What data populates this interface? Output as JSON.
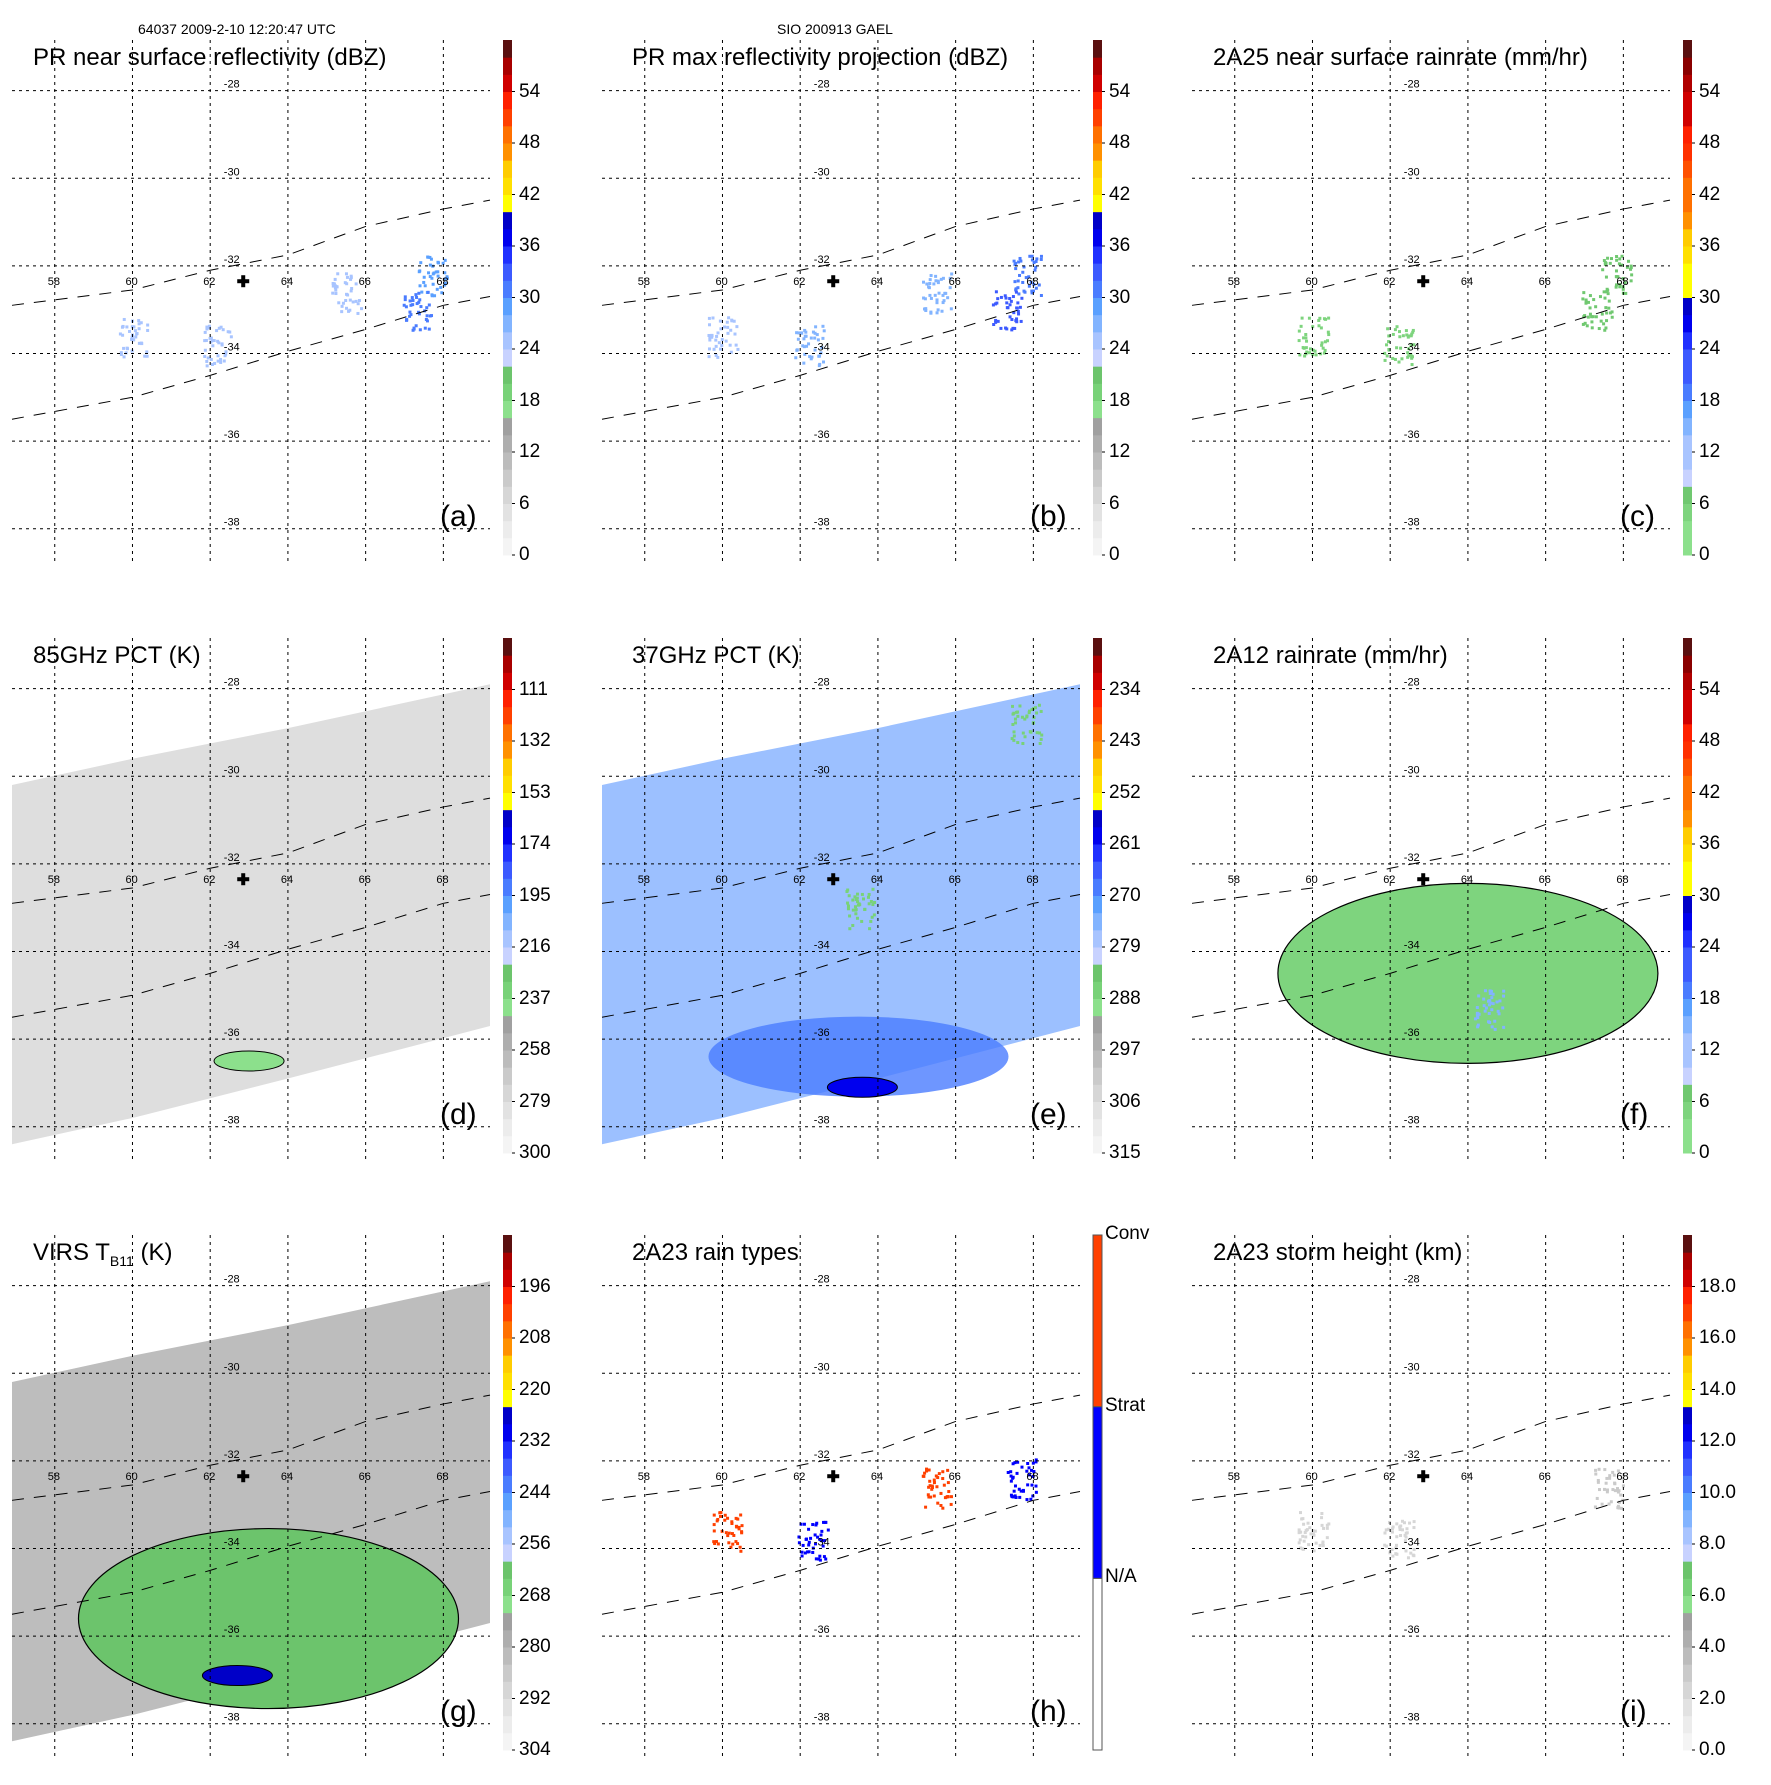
{
  "header": {
    "left_text": "64037 2009-2-10 12:20:47 UTC",
    "center_text": "SIO 200913 GAEL"
  },
  "grid": {
    "lon_ticks": [
      "58",
      "60",
      "62",
      "64",
      "66",
      "68"
    ],
    "lat_ticks": [
      "-28",
      "-30",
      "-32",
      "-34",
      "-36",
      "-38"
    ],
    "lon_values": [
      58,
      60,
      62,
      64,
      66,
      68
    ],
    "lat_values": [
      -28,
      -30,
      -32,
      -34,
      -36,
      -38
    ],
    "lon_range": [
      56.9,
      69.2
    ],
    "lat_range": [
      -27.3,
      -38.6
    ],
    "storm_center": {
      "lon": 62.85,
      "lat": -32.35,
      "marker": "cross"
    },
    "pr_swath_edges": [
      {
        "name": "north-edge",
        "points": [
          [
            56.9,
            -32.9
          ],
          [
            60,
            -32.55
          ],
          [
            62,
            -32.1
          ],
          [
            64,
            -31.75
          ],
          [
            66,
            -31.1
          ],
          [
            68,
            -30.7
          ],
          [
            69.2,
            -30.5
          ]
        ]
      },
      {
        "name": "south-edge",
        "points": [
          [
            56.9,
            -35.5
          ],
          [
            60,
            -35.0
          ],
          [
            62,
            -34.5
          ],
          [
            64,
            -33.95
          ],
          [
            66,
            -33.45
          ],
          [
            68,
            -32.9
          ],
          [
            69.2,
            -32.7
          ]
        ]
      }
    ]
  },
  "chart_data": [
    {
      "id": "a",
      "type": "heatmap",
      "panel_label": "(a)",
      "title": "PR near surface reflectivity (dBZ)",
      "colorbar": {
        "ticks": [
          "0",
          "6",
          "12",
          "18",
          "24",
          "30",
          "36",
          "42",
          "48",
          "54"
        ],
        "min": 0,
        "max": 60,
        "kind": "reflectivity"
      },
      "features": [
        {
          "kind": "scatter",
          "lon": 60.0,
          "lat": -33.6,
          "val": 24
        },
        {
          "kind": "scatter",
          "lon": 62.2,
          "lat": -33.8,
          "val": 24
        },
        {
          "kind": "scatter",
          "lon": 67.7,
          "lat": -32.2,
          "val": 28
        },
        {
          "kind": "scatter",
          "lon": 67.3,
          "lat": -33.0,
          "val": 30
        },
        {
          "kind": "scatter",
          "lon": 65.5,
          "lat": -32.6,
          "val": 25
        }
      ]
    },
    {
      "id": "b",
      "type": "heatmap",
      "panel_label": "(b)",
      "title": "PR max reflectivity projection (dBZ)",
      "colorbar": {
        "ticks": [
          "0",
          "6",
          "12",
          "18",
          "24",
          "30",
          "36",
          "42",
          "48",
          "54"
        ],
        "min": 0,
        "max": 60,
        "kind": "reflectivity"
      },
      "features": [
        {
          "kind": "scatter",
          "lon": 60.0,
          "lat": -33.6,
          "val": 24
        },
        {
          "kind": "scatter",
          "lon": 62.2,
          "lat": -33.8,
          "val": 26
        },
        {
          "kind": "scatter",
          "lon": 67.8,
          "lat": -32.2,
          "val": 30
        },
        {
          "kind": "scatter",
          "lon": 67.3,
          "lat": -33.0,
          "val": 32
        },
        {
          "kind": "scatter",
          "lon": 65.5,
          "lat": -32.6,
          "val": 26
        }
      ]
    },
    {
      "id": "c",
      "type": "heatmap",
      "panel_label": "(c)",
      "title": "2A25 near surface rainrate (mm/hr)",
      "colorbar": {
        "ticks": [
          "0",
          "6",
          "12",
          "18",
          "24",
          "30",
          "36",
          "42",
          "48",
          "54"
        ],
        "min": 0,
        "max": 60,
        "kind": "rainrate"
      },
      "features": [
        {
          "kind": "scatter",
          "lon": 60.0,
          "lat": -33.6,
          "val": 3
        },
        {
          "kind": "scatter",
          "lon": 62.2,
          "lat": -33.8,
          "val": 4
        },
        {
          "kind": "scatter",
          "lon": 67.8,
          "lat": -32.2,
          "val": 5
        },
        {
          "kind": "scatter",
          "lon": 67.3,
          "lat": -33.0,
          "val": 6
        }
      ]
    },
    {
      "id": "d",
      "type": "heatmap",
      "panel_label": "(d)",
      "title": "85GHz PCT (K)",
      "colorbar": {
        "ticks": [
          "300",
          "279",
          "258",
          "237",
          "216",
          "195",
          "174",
          "153",
          "132",
          "111"
        ],
        "min": 300,
        "max": 90,
        "kind": "reflectivity"
      },
      "swath": "wide",
      "features": [
        {
          "kind": "blob",
          "lon": 63.0,
          "lat": -36.5,
          "val": 240
        }
      ]
    },
    {
      "id": "e",
      "type": "heatmap",
      "panel_label": "(e)",
      "title": "37GHz PCT (K)",
      "colorbar": {
        "ticks": [
          "315",
          "306",
          "297",
          "288",
          "279",
          "270",
          "261",
          "252",
          "243",
          "234"
        ],
        "min": 315,
        "max": 225,
        "kind": "reflectivity"
      },
      "swath": "wide",
      "features": [
        {
          "kind": "band",
          "lon": 63.5,
          "lat": -36.4,
          "val": 268
        },
        {
          "kind": "blob",
          "lon": 63.6,
          "lat": -37.1,
          "val": 261
        },
        {
          "kind": "scatter",
          "lon": 67.8,
          "lat": -28.8,
          "val": 288
        },
        {
          "kind": "scatter",
          "lon": 63.5,
          "lat": -33.0,
          "val": 288
        }
      ]
    },
    {
      "id": "f",
      "type": "heatmap",
      "panel_label": "(f)",
      "title": "2A12 rainrate (mm/hr)",
      "colorbar": {
        "ticks": [
          "0",
          "6",
          "12",
          "18",
          "24",
          "30",
          "36",
          "42",
          "48",
          "54"
        ],
        "min": 0,
        "max": 60,
        "kind": "rainrate"
      },
      "features": [
        {
          "kind": "region",
          "lon": 64.0,
          "lat": -34.5,
          "val": 3
        },
        {
          "kind": "scatter",
          "lon": 64.5,
          "lat": -35.3,
          "val": 14
        }
      ]
    },
    {
      "id": "g",
      "type": "heatmap",
      "panel_label": "(g)",
      "title_main": "VIRS T",
      "title_sub": "B11",
      "title_unit": " (K)",
      "colorbar": {
        "ticks": [
          "304",
          "292",
          "280",
          "268",
          "256",
          "244",
          "232",
          "220",
          "208",
          "196"
        ],
        "min": 304,
        "max": 184,
        "kind": "reflectivity"
      },
      "swath": "wide",
      "features": [
        {
          "kind": "region",
          "lon": 63.5,
          "lat": -35.6,
          "val": 262
        },
        {
          "kind": "blob",
          "lon": 62.7,
          "lat": -36.9,
          "val": 225
        }
      ]
    },
    {
      "id": "h",
      "type": "heatmap",
      "panel_label": "(h)",
      "title": "2A23 rain types",
      "colorbar": {
        "categories": [
          "N/A",
          "Strat",
          "Conv"
        ],
        "colors": [
          "#ffffff",
          "#0000ff",
          "#ff4000"
        ],
        "kind": "categorical"
      },
      "features": [
        {
          "kind": "scatter",
          "lon": 60.1,
          "lat": -33.6,
          "val": "Conv"
        },
        {
          "kind": "scatter",
          "lon": 62.3,
          "lat": -33.8,
          "val": "Strat"
        },
        {
          "kind": "scatter",
          "lon": 67.7,
          "lat": -32.4,
          "val": "Strat"
        },
        {
          "kind": "scatter",
          "lon": 65.5,
          "lat": -32.6,
          "val": "Conv"
        }
      ]
    },
    {
      "id": "i",
      "type": "heatmap",
      "panel_label": "(i)",
      "title": "2A23 storm height (km)",
      "colorbar": {
        "ticks": [
          "0.0",
          "2.0",
          "4.0",
          "6.0",
          "8.0",
          "10.0",
          "12.0",
          "14.0",
          "16.0",
          "18.0"
        ],
        "min": 0,
        "max": 20,
        "kind": "reflectivity"
      },
      "features": [
        {
          "kind": "scatter",
          "lon": 60.0,
          "lat": -33.6,
          "val": 2
        },
        {
          "kind": "scatter",
          "lon": 62.2,
          "lat": -33.8,
          "val": 2.5
        },
        {
          "kind": "scatter",
          "lon": 67.6,
          "lat": -32.6,
          "val": 3
        }
      ]
    }
  ],
  "palettes": {
    "reflectivity": [
      "#f4f4f4",
      "#ececec",
      "#e2e2e2",
      "#d6d6d6",
      "#cacaca",
      "#bcbcbc",
      "#aeaeae",
      "#a0a0a0",
      "#8ce08c",
      "#78d278",
      "#6cc46c",
      "#c8d2ff",
      "#a8c4ff",
      "#82b4ff",
      "#5aa0ff",
      "#4a7cff",
      "#3c5aff",
      "#2030ff",
      "#0000ee",
      "#0000c8",
      "#ffff00",
      "#ffe000",
      "#ffcc00",
      "#ff9000",
      "#ff7000",
      "#ff4000",
      "#ff2000",
      "#d00000",
      "#a80000",
      "#5a1010"
    ],
    "rainrate": [
      "#8ce08c",
      "#7ed47e",
      "#70c870",
      "#c8d2ff",
      "#a8c4ff",
      "#82b4ff",
      "#5aa0ff",
      "#4a7cff",
      "#3c5aff",
      "#2030ff",
      "#0000ee",
      "#0000c8",
      "#ffff00",
      "#ffe000",
      "#ffcc00",
      "#ff9000",
      "#ff7000",
      "#ff5000",
      "#ff3000",
      "#ff2000",
      "#d00000",
      "#b00000",
      "#8a0000",
      "#5a1010"
    ]
  }
}
